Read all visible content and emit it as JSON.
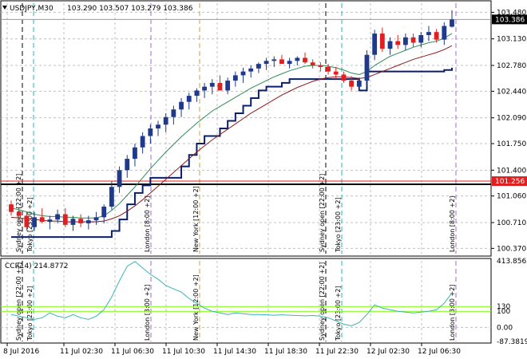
{
  "header": {
    "dropdown_icon": "triangle-down-icon",
    "symbol": "USDJPY,M30",
    "ohlc": "103.290 103.507 103.279 103.386"
  },
  "indicator_header": {
    "label": "CCI(14) 214.8772"
  },
  "colors": {
    "bull_candle": "#1f3a8a",
    "bear_candle": "#e02020",
    "ma_fast": "#2e8b57",
    "ma_slow": "#8b1a1a",
    "stop_line": "#0a1f6b",
    "cci_line": "#3cb4b4",
    "cci_level": "#7cfc00",
    "current_price_bg": "#000000",
    "red_line_bg": "#e02020",
    "session_line": "#1fb8b8",
    "grid": "#c0c0c0"
  },
  "price_axis": {
    "ticks": [
      "103.480",
      "103.130",
      "102.780",
      "102.440",
      "102.090",
      "101.750",
      "101.400",
      "101.060",
      "100.710",
      "100.370"
    ],
    "current_price": "103.386",
    "red_line_price": "101.256"
  },
  "cci_axis": {
    "ticks": [
      "413.8562",
      "130",
      "100",
      "0.00",
      "-87.3819"
    ]
  },
  "time_axis": {
    "ticks": [
      "8 Jul 2016",
      "11 Jul 02:30",
      "11 Jul 06:30",
      "11 Jul 10:30",
      "11 Jul 14:30",
      "11 Jul 18:30",
      "11 Jul 22:30",
      "12 Jul 02:30",
      "12 Jul 06:30"
    ]
  },
  "sessions": [
    {
      "label": "Sydney open [22:00 +2]"
    },
    {
      "label": "Tokyo [23:00 +2]"
    },
    {
      "label": "London [8:00 +2]"
    },
    {
      "label": "New York [12:00 +2]"
    },
    {
      "label": "Sydney open [22:00 +2]"
    },
    {
      "label": "Tokyo [23:00 +2]"
    },
    {
      "label": "London [8:00 +2]"
    }
  ],
  "cci_sessions": [
    {
      "label": "Sydney open [22:00 +2]"
    },
    {
      "label": "Tokyo [23:00 +2]"
    },
    {
      "label": "London [3:00 +2]"
    },
    {
      "label": "New York [12:00 +2]"
    },
    {
      "label": "Sydney open [22:00 +2]"
    },
    {
      "label": "Tokyo [23:00 +2]"
    },
    {
      "label": "London [3:00 +2]"
    }
  ],
  "chart_data": {
    "type": "candlestick",
    "symbol": "USDJPY",
    "timeframe": "M30",
    "ylim": [
      100.3,
      103.6
    ],
    "candles": [
      [
        100.95,
        101.0,
        100.8,
        100.85
      ],
      [
        100.85,
        100.9,
        100.7,
        100.8
      ],
      [
        100.8,
        100.85,
        100.6,
        100.65
      ],
      [
        100.65,
        100.85,
        100.6,
        100.78
      ],
      [
        100.78,
        100.9,
        100.7,
        100.72
      ],
      [
        100.72,
        100.8,
        100.62,
        100.75
      ],
      [
        100.75,
        100.88,
        100.7,
        100.82
      ],
      [
        100.82,
        100.9,
        100.65,
        100.68
      ],
      [
        100.68,
        100.8,
        100.6,
        100.76
      ],
      [
        100.76,
        100.82,
        100.65,
        100.7
      ],
      [
        100.7,
        100.8,
        100.62,
        100.74
      ],
      [
        100.74,
        100.85,
        100.68,
        100.78
      ],
      [
        100.78,
        100.95,
        100.7,
        100.92
      ],
      [
        100.92,
        101.25,
        100.88,
        101.18
      ],
      [
        101.18,
        101.45,
        101.1,
        101.4
      ],
      [
        101.4,
        101.6,
        101.3,
        101.55
      ],
      [
        101.55,
        101.75,
        101.45,
        101.7
      ],
      [
        101.7,
        101.9,
        101.62,
        101.85
      ],
      [
        101.85,
        102.0,
        101.75,
        101.95
      ],
      [
        101.95,
        102.05,
        101.85,
        102.0
      ],
      [
        102.0,
        102.15,
        101.9,
        102.1
      ],
      [
        102.1,
        102.25,
        102.0,
        102.2
      ],
      [
        102.2,
        102.35,
        102.1,
        102.3
      ],
      [
        102.3,
        102.42,
        102.2,
        102.38
      ],
      [
        102.38,
        102.48,
        102.3,
        102.45
      ],
      [
        102.45,
        102.55,
        102.35,
        102.5
      ],
      [
        102.5,
        102.6,
        102.4,
        102.55
      ],
      [
        102.55,
        102.65,
        102.45,
        102.45
      ],
      [
        102.45,
        102.62,
        102.4,
        102.58
      ],
      [
        102.58,
        102.7,
        102.5,
        102.65
      ],
      [
        102.65,
        102.75,
        102.55,
        102.7
      ],
      [
        102.7,
        102.78,
        102.62,
        102.74
      ],
      [
        102.74,
        102.82,
        102.68,
        102.8
      ],
      [
        102.8,
        102.88,
        102.72,
        102.84
      ],
      [
        102.84,
        102.9,
        102.76,
        102.86
      ],
      [
        102.86,
        102.92,
        102.8,
        102.8
      ],
      [
        102.8,
        102.88,
        102.74,
        102.84
      ],
      [
        102.84,
        102.9,
        102.78,
        102.88
      ],
      [
        102.88,
        102.95,
        102.8,
        102.82
      ],
      [
        102.82,
        102.86,
        102.74,
        102.78
      ],
      [
        102.78,
        102.82,
        102.7,
        102.76
      ],
      [
        102.76,
        102.8,
        102.66,
        102.7
      ],
      [
        102.7,
        102.76,
        102.6,
        102.66
      ],
      [
        102.66,
        102.7,
        102.55,
        102.58
      ],
      [
        102.58,
        102.64,
        102.45,
        102.5
      ],
      [
        102.5,
        102.62,
        102.44,
        102.58
      ],
      [
        102.58,
        102.98,
        102.5,
        102.92
      ],
      [
        102.92,
        103.25,
        102.85,
        103.2
      ],
      [
        103.2,
        103.28,
        102.96,
        103.0
      ],
      [
        103.0,
        103.15,
        102.92,
        103.1
      ],
      [
        103.1,
        103.18,
        103.0,
        103.05
      ],
      [
        103.05,
        103.2,
        102.98,
        103.15
      ],
      [
        103.15,
        103.2,
        103.02,
        103.08
      ],
      [
        103.08,
        103.22,
        103.02,
        103.18
      ],
      [
        103.18,
        103.3,
        103.1,
        103.22
      ],
      [
        103.22,
        103.26,
        103.08,
        103.12
      ],
      [
        103.12,
        103.35,
        103.05,
        103.3
      ],
      [
        103.29,
        103.507,
        103.279,
        103.386
      ]
    ],
    "ma_fast": [
      100.9,
      100.88,
      100.85,
      100.82,
      100.8,
      100.79,
      100.79,
      100.78,
      100.78,
      100.77,
      100.77,
      100.77,
      100.8,
      100.87,
      100.96,
      101.07,
      101.18,
      101.3,
      101.42,
      101.53,
      101.64,
      101.74,
      101.84,
      101.93,
      102.02,
      102.1,
      102.18,
      102.24,
      102.3,
      102.36,
      102.42,
      102.48,
      102.53,
      102.58,
      102.63,
      102.67,
      102.71,
      102.74,
      102.77,
      102.78,
      102.78,
      102.77,
      102.75,
      102.72,
      102.68,
      102.66,
      102.7,
      102.78,
      102.84,
      102.9,
      102.94,
      102.98,
      103.02,
      103.05,
      103.08,
      103.1,
      103.14,
      103.2
    ],
    "ma_slow": [
      100.78,
      100.77,
      100.76,
      100.75,
      100.74,
      100.73,
      100.73,
      100.72,
      100.72,
      100.72,
      100.72,
      100.72,
      100.73,
      100.76,
      100.8,
      100.86,
      100.93,
      101.01,
      101.1,
      101.19,
      101.28,
      101.37,
      101.46,
      101.55,
      101.64,
      101.72,
      101.8,
      101.87,
      101.94,
      102.01,
      102.08,
      102.15,
      102.21,
      102.27,
      102.33,
      102.39,
      102.44,
      102.49,
      102.53,
      102.57,
      102.6,
      102.62,
      102.63,
      102.63,
      102.62,
      102.61,
      102.62,
      102.66,
      102.7,
      102.74,
      102.78,
      102.82,
      102.86,
      102.89,
      102.92,
      102.95,
      102.99,
      103.04
    ],
    "stop_line": [
      100.52,
      100.52,
      100.52,
      100.52,
      100.52,
      100.52,
      100.52,
      100.52,
      100.52,
      100.52,
      100.52,
      100.52,
      100.52,
      100.6,
      100.75,
      100.95,
      101.1,
      101.2,
      101.3,
      101.3,
      101.3,
      101.3,
      101.45,
      101.6,
      101.75,
      101.85,
      101.85,
      101.95,
      102.05,
      102.15,
      102.25,
      102.35,
      102.45,
      102.5,
      102.5,
      102.55,
      102.6,
      102.6,
      102.6,
      102.6,
      102.6,
      102.6,
      102.6,
      102.6,
      102.6,
      102.45,
      102.7,
      102.7,
      102.7,
      102.7,
      102.7,
      102.7,
      102.7,
      102.7,
      102.7,
      102.7,
      102.72,
      102.75
    ],
    "red_level": 101.256,
    "cci": {
      "name": "CCI(14)",
      "ylim": [
        -87.3819,
        413.8562
      ],
      "levels": [
        100,
        130
      ],
      "values": [
        80,
        70,
        60,
        50,
        60,
        90,
        70,
        60,
        80,
        60,
        50,
        70,
        110,
        190,
        290,
        380,
        410,
        370,
        330,
        300,
        260,
        240,
        220,
        180,
        150,
        120,
        100,
        90,
        80,
        90,
        85,
        80,
        80,
        78,
        76,
        78,
        76,
        74,
        72,
        74,
        70,
        60,
        40,
        20,
        10,
        30,
        80,
        140,
        120,
        110,
        100,
        95,
        90,
        95,
        100,
        110,
        150,
        214.8772
      ]
    }
  }
}
